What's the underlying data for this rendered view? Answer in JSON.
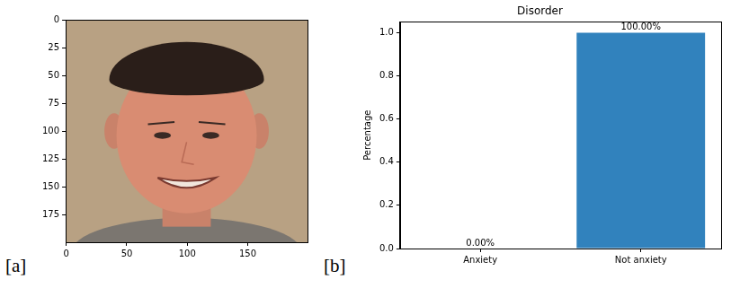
{
  "chart_data": [
    {
      "type": "image",
      "annotations": [
        "[a]"
      ],
      "xlim": [
        -0.5,
        199.5
      ],
      "ylim": [
        199.5,
        -0.5
      ],
      "xticks": [
        0,
        50,
        100,
        150
      ],
      "yticks": [
        0,
        25,
        50,
        75,
        100,
        125,
        150,
        175
      ]
    },
    {
      "type": "bar",
      "title": "Disorder",
      "annotations": [
        "[b]"
      ],
      "ylabel": "Percentage",
      "categories": [
        "Anxiety",
        "Not anxiety"
      ],
      "values": [
        0,
        1.0
      ],
      "value_labels": [
        "0.00%",
        "100.00%"
      ],
      "data_labels": true,
      "color": "#3182bd",
      "ylim": [
        0,
        1.05
      ],
      "yticks": [
        {
          "value": 0,
          "label": "0.0"
        },
        {
          "value": 0.2,
          "label": "0.2"
        },
        {
          "value": 0.4,
          "label": "0.4"
        },
        {
          "value": 0.6,
          "label": "0.6"
        },
        {
          "value": 0.8,
          "label": "0.8"
        },
        {
          "value": 1.0,
          "label": "1.0"
        }
      ],
      "grid": false
    }
  ]
}
